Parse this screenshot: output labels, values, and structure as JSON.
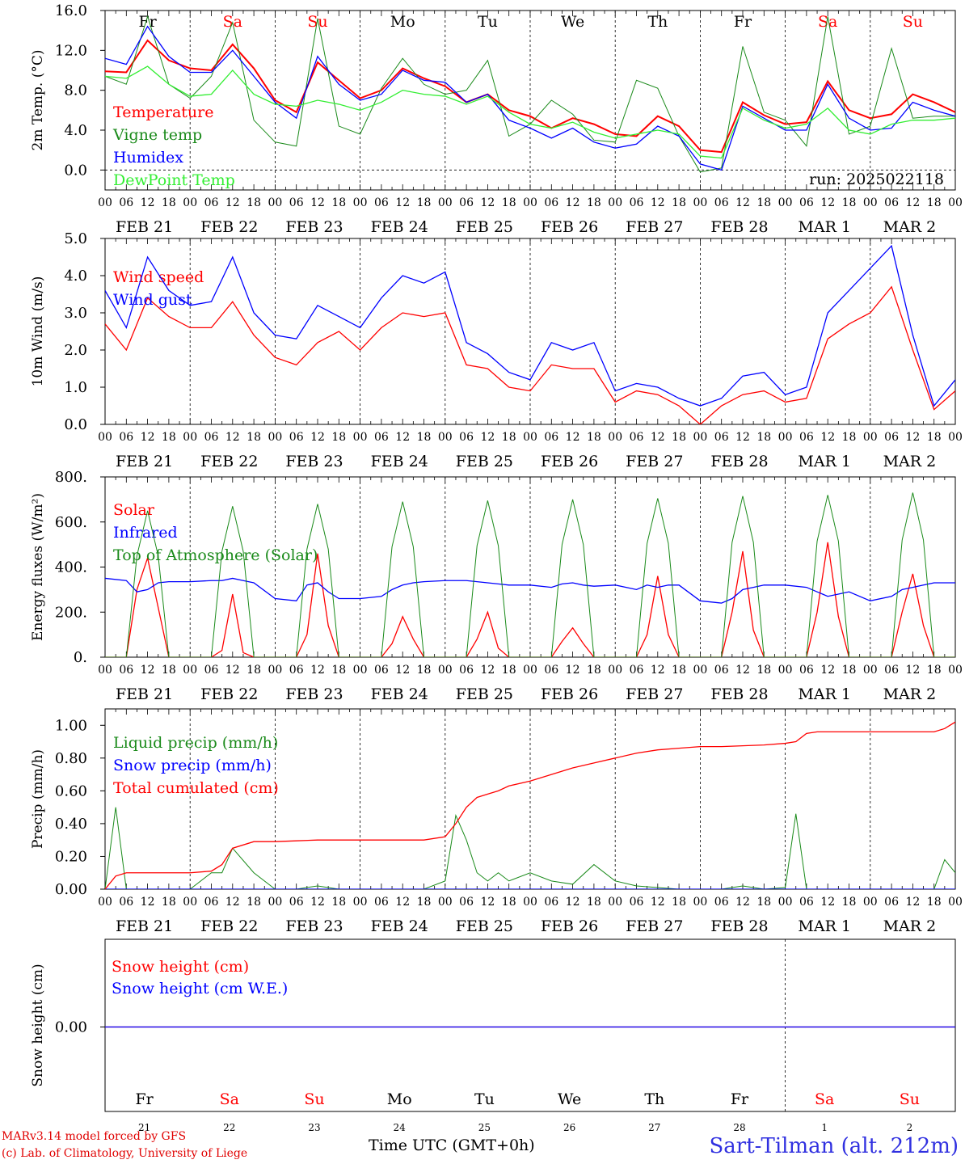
{
  "colors": {
    "temperature": "#ff0000",
    "vigne": "#1a8a1a",
    "humidex": "#0000ff",
    "dewpoint": "#33ee33",
    "weekend_day": "#ff0000",
    "station": "#3030e0"
  },
  "day_labels": [
    "Fr",
    "Sa",
    "Su",
    "Mo",
    "Tu",
    "We",
    "Th",
    "Fr",
    "Sa",
    "Su"
  ],
  "weekend_flags": [
    false,
    true,
    true,
    false,
    false,
    false,
    false,
    false,
    true,
    true
  ],
  "date_labels": [
    "FEB 21",
    "FEB 22",
    "FEB 23",
    "FEB 24",
    "FEB 25",
    "FEB 26",
    "FEB 27",
    "FEB 28",
    "MAR  1",
    "MAR  2"
  ],
  "hour_ticks": [
    "00",
    "06",
    "12",
    "18"
  ],
  "hour_end": "00",
  "bottom_day_numbers": [
    "21",
    "22",
    "23",
    "24",
    "25",
    "26",
    "27",
    "28",
    "1",
    "2"
  ],
  "footer": {
    "model_line": "MARv3.14 model forced by GFS",
    "lab_line": "(c) Lab. of Climatology, University of Liege",
    "time_label": "Time UTC (GMT+0h)",
    "station": "Sart-Tilman (alt. 212m)"
  },
  "chart_data": [
    {
      "type": "line",
      "ylabel": "2m Temp. (°C)",
      "ylim": [
        -2,
        16
      ],
      "yticks": [
        "16.0",
        "12.0",
        "8.0",
        "4.0",
        "0.0"
      ],
      "ytick_values": [
        16,
        12,
        8,
        4,
        0
      ],
      "run_label": "run: 2025022118",
      "x_hours": [
        0,
        6,
        12,
        18,
        24,
        30,
        36,
        42,
        48,
        54,
        60,
        66,
        72,
        78,
        84,
        90,
        96,
        102,
        108,
        114,
        120,
        126,
        132,
        138,
        144,
        150,
        156,
        162,
        168,
        174,
        180,
        186,
        192,
        198,
        204,
        210,
        216,
        222,
        228,
        234,
        240
      ],
      "series": [
        {
          "name": "Temperature",
          "color_key": "temperature",
          "values": [
            9.9,
            9.8,
            13.0,
            11.0,
            10.2,
            10.0,
            12.6,
            10.2,
            7.0,
            5.8,
            10.8,
            9.0,
            7.2,
            8.0,
            10.2,
            9.2,
            8.4,
            6.8,
            7.6,
            6.0,
            5.4,
            4.2,
            5.2,
            4.6,
            3.6,
            3.4,
            5.4,
            4.4,
            2.0,
            1.8,
            6.8,
            5.5,
            4.6,
            4.8,
            8.9,
            6.0,
            5.2,
            5.6,
            7.6,
            6.8,
            5.8
          ]
        },
        {
          "name": "Vigne temp",
          "color_key": "vigne",
          "values": [
            9.4,
            8.6,
            15.4,
            8.6,
            7.2,
            9.4,
            14.8,
            5.0,
            2.8,
            2.4,
            15.2,
            4.4,
            3.6,
            8.2,
            11.2,
            8.6,
            7.6,
            8.0,
            11.0,
            3.4,
            4.6,
            7.0,
            5.6,
            3.0,
            2.8,
            9.0,
            8.2,
            3.4,
            -0.2,
            0.2,
            12.4,
            5.8,
            5.0,
            2.4,
            15.4,
            3.6,
            4.4,
            12.2,
            5.2,
            5.4,
            5.4
          ]
        },
        {
          "name": "Humidex",
          "color_key": "humidex",
          "values": [
            11.2,
            10.6,
            14.4,
            11.4,
            9.8,
            9.8,
            12.0,
            9.4,
            6.8,
            5.2,
            11.4,
            8.6,
            7.0,
            7.6,
            10.0,
            9.0,
            8.8,
            6.8,
            7.6,
            5.0,
            4.2,
            3.2,
            4.2,
            2.8,
            2.2,
            2.6,
            4.4,
            3.4,
            0.6,
            0.0,
            6.4,
            5.2,
            4.0,
            4.0,
            8.6,
            5.2,
            4.0,
            4.2,
            6.8,
            6.0,
            5.4
          ]
        },
        {
          "name": "DewPoint Temp",
          "color_key": "dewpoint",
          "values": [
            9.4,
            9.2,
            10.4,
            8.6,
            7.4,
            7.6,
            10.0,
            7.6,
            6.6,
            6.4,
            7.0,
            6.6,
            6.0,
            6.8,
            8.0,
            7.6,
            7.4,
            6.6,
            7.4,
            5.8,
            4.6,
            4.2,
            4.8,
            3.8,
            3.2,
            3.6,
            4.0,
            3.6,
            1.4,
            1.2,
            6.2,
            5.0,
            4.2,
            4.6,
            6.2,
            4.0,
            3.6,
            4.6,
            5.0,
            5.0,
            5.2
          ]
        }
      ]
    },
    {
      "type": "line",
      "ylabel": "10m Wind (m/s)",
      "ylim": [
        0,
        5
      ],
      "yticks": [
        "5.0",
        "4.0",
        "3.0",
        "2.0",
        "1.0",
        "0.0"
      ],
      "ytick_values": [
        5,
        4,
        3,
        2,
        1,
        0
      ],
      "x_hours": [
        0,
        6,
        12,
        18,
        24,
        30,
        36,
        42,
        48,
        54,
        60,
        66,
        72,
        78,
        84,
        90,
        96,
        102,
        108,
        114,
        120,
        126,
        132,
        138,
        144,
        150,
        156,
        162,
        168,
        174,
        180,
        186,
        192,
        198,
        204,
        210,
        216,
        222,
        228,
        234,
        240
      ],
      "series": [
        {
          "name": "Wind speed",
          "color_key": "temperature",
          "values": [
            2.7,
            2.0,
            3.4,
            2.9,
            2.6,
            2.6,
            3.3,
            2.4,
            1.8,
            1.6,
            2.2,
            2.5,
            2.0,
            2.6,
            3.0,
            2.9,
            3.0,
            1.6,
            1.5,
            1.0,
            0.9,
            1.6,
            1.5,
            1.5,
            0.6,
            0.9,
            0.8,
            0.5,
            0.0,
            0.5,
            0.8,
            0.9,
            0.6,
            0.7,
            2.3,
            2.7,
            3.0,
            3.7,
            2.0,
            0.4,
            0.9
          ]
        },
        {
          "name": "Wind gust",
          "color_key": "humidex",
          "values": [
            3.6,
            2.6,
            4.5,
            3.6,
            3.2,
            3.3,
            4.5,
            3.0,
            2.4,
            2.3,
            3.2,
            2.9,
            2.6,
            3.4,
            4.0,
            3.8,
            4.1,
            2.2,
            1.9,
            1.4,
            1.2,
            2.2,
            2.0,
            2.2,
            0.9,
            1.1,
            1.0,
            0.7,
            0.5,
            0.7,
            1.3,
            1.4,
            0.8,
            1.0,
            3.0,
            3.6,
            4.2,
            4.8,
            2.4,
            0.5,
            1.2
          ]
        }
      ]
    },
    {
      "type": "line",
      "ylabel": "Energy fluxes (W/m²)",
      "ylim": [
        0,
        800
      ],
      "yticks": [
        "800.",
        "600.",
        "400.",
        "200.",
        "0."
      ],
      "ytick_values": [
        800,
        600,
        400,
        200,
        0
      ],
      "x_hours": [
        0,
        6,
        9,
        12,
        15,
        18,
        24,
        30,
        33,
        36,
        39,
        42,
        48,
        54,
        57,
        60,
        63,
        66,
        72,
        78,
        81,
        84,
        87,
        90,
        96,
        102,
        105,
        108,
        111,
        114,
        120,
        126,
        129,
        132,
        135,
        138,
        144,
        150,
        153,
        156,
        159,
        162,
        168,
        174,
        177,
        180,
        183,
        186,
        192,
        198,
        201,
        204,
        207,
        210,
        216,
        222,
        225,
        228,
        231,
        234,
        240
      ],
      "series": [
        {
          "name": "Solar",
          "color_key": "temperature",
          "values": [
            0,
            0,
            300,
            440,
            220,
            0,
            0,
            0,
            30,
            280,
            20,
            0,
            0,
            0,
            100,
            460,
            140,
            0,
            0,
            0,
            60,
            180,
            80,
            0,
            0,
            0,
            80,
            200,
            40,
            0,
            0,
            0,
            70,
            130,
            60,
            0,
            0,
            0,
            100,
            360,
            100,
            0,
            0,
            0,
            200,
            470,
            120,
            0,
            0,
            0,
            200,
            510,
            180,
            0,
            0,
            0,
            200,
            370,
            140,
            0,
            0
          ]
        },
        {
          "name": "Infrared",
          "color_key": "humidex",
          "values": [
            350,
            340,
            290,
            300,
            330,
            335,
            335,
            340,
            340,
            350,
            340,
            330,
            260,
            250,
            320,
            330,
            290,
            260,
            260,
            270,
            300,
            320,
            330,
            335,
            340,
            340,
            335,
            330,
            325,
            320,
            320,
            310,
            325,
            330,
            320,
            315,
            320,
            300,
            320,
            310,
            320,
            320,
            250,
            240,
            260,
            300,
            310,
            320,
            320,
            310,
            290,
            270,
            280,
            290,
            250,
            270,
            300,
            310,
            320,
            330,
            330
          ]
        },
        {
          "name": "Top of Atmosphere (Solar)",
          "color_key": "vigne",
          "values": [
            0,
            0,
            450,
            650,
            450,
            0,
            0,
            0,
            470,
            670,
            470,
            0,
            0,
            0,
            480,
            680,
            480,
            0,
            0,
            0,
            490,
            690,
            490,
            0,
            0,
            0,
            495,
            695,
            495,
            0,
            0,
            0,
            500,
            700,
            500,
            0,
            0,
            0,
            505,
            705,
            505,
            0,
            0,
            0,
            510,
            715,
            510,
            0,
            0,
            0,
            515,
            720,
            515,
            0,
            0,
            0,
            520,
            730,
            520,
            0,
            0
          ]
        }
      ]
    },
    {
      "type": "line",
      "ylabel": "Precip (mm/h)",
      "ylim": [
        0,
        1.1
      ],
      "yticks": [
        "1.00",
        "0.80",
        "0.60",
        "0.40",
        "0.20",
        "0.00"
      ],
      "ytick_values": [
        1.0,
        0.8,
        0.6,
        0.4,
        0.2,
        0.0
      ],
      "x_hours": [
        0,
        3,
        6,
        9,
        12,
        18,
        24,
        30,
        33,
        36,
        42,
        48,
        54,
        60,
        66,
        72,
        78,
        84,
        90,
        96,
        99,
        102,
        105,
        108,
        111,
        114,
        120,
        126,
        132,
        138,
        144,
        150,
        156,
        162,
        168,
        174,
        180,
        186,
        192,
        195,
        198,
        201,
        204,
        210,
        216,
        222,
        228,
        234,
        237,
        240
      ],
      "series": [
        {
          "name": "Liquid precip (mm/h)",
          "color_key": "vigne",
          "values": [
            0,
            0.5,
            0,
            0,
            0,
            0,
            0,
            0.1,
            0.1,
            0.25,
            0.1,
            0,
            0,
            0.02,
            0,
            0,
            0,
            0,
            0,
            0.05,
            0.45,
            0.3,
            0.1,
            0.05,
            0.1,
            0.05,
            0.1,
            0.05,
            0.03,
            0.15,
            0.05,
            0.02,
            0.01,
            0,
            0,
            0,
            0.02,
            0,
            0.01,
            0.46,
            0,
            0,
            0,
            0,
            0,
            0,
            0,
            0,
            0.18,
            0.1
          ]
        },
        {
          "name": "Snow precip (mm/h)",
          "color_key": "humidex",
          "values": [
            0,
            0,
            0,
            0,
            0,
            0,
            0,
            0,
            0,
            0,
            0,
            0,
            0,
            0,
            0,
            0,
            0,
            0,
            0,
            0,
            0,
            0,
            0,
            0,
            0,
            0,
            0,
            0,
            0,
            0,
            0,
            0,
            0,
            0,
            0,
            0,
            0,
            0,
            0,
            0,
            0,
            0,
            0,
            0,
            0,
            0,
            0,
            0,
            0,
            0
          ]
        },
        {
          "name": "Total cumulated (cm)",
          "color_key": "temperature",
          "values": [
            0,
            0.08,
            0.1,
            0.1,
            0.1,
            0.1,
            0.1,
            0.11,
            0.15,
            0.25,
            0.29,
            0.29,
            0.295,
            0.3,
            0.3,
            0.3,
            0.3,
            0.3,
            0.3,
            0.32,
            0.4,
            0.5,
            0.56,
            0.58,
            0.6,
            0.63,
            0.66,
            0.7,
            0.74,
            0.77,
            0.8,
            0.83,
            0.85,
            0.86,
            0.87,
            0.87,
            0.875,
            0.88,
            0.89,
            0.9,
            0.95,
            0.96,
            0.96,
            0.96,
            0.96,
            0.96,
            0.96,
            0.96,
            0.98,
            1.02
          ]
        }
      ]
    },
    {
      "type": "line",
      "ylabel": "Snow height (cm)",
      "yticks": [
        "0.00"
      ],
      "ytick_values": [
        0
      ],
      "x_hours": [
        0,
        240
      ],
      "series": [
        {
          "name": "Snow height (cm)",
          "color_key": "temperature",
          "values": [
            0,
            0
          ]
        },
        {
          "name": "Snow height (cm W.E.)",
          "color_key": "humidex",
          "values": [
            0,
            0
          ]
        }
      ]
    }
  ]
}
